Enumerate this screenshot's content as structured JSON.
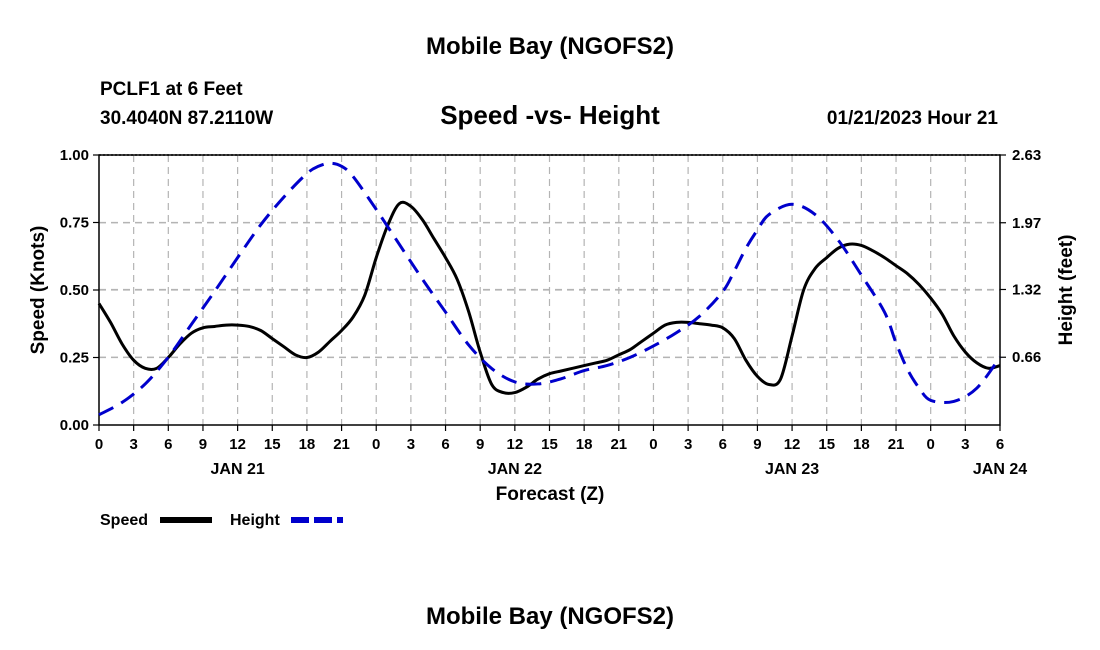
{
  "page_title": "Mobile Bay (NGOFS2)",
  "footer_title": "Mobile Bay (NGOFS2)",
  "chart_data": {
    "type": "line",
    "title": "Speed -vs- Height",
    "station": "PCLF1 at 6 Feet",
    "coords": "30.4040N  87.2110W",
    "datetime": "01/21/2023 Hour 21",
    "xlabel": "Forecast (Z)",
    "ylabel_left": "Speed (Knots)",
    "ylabel_right": "Height (feet)",
    "grid": true,
    "x_hours_range": [
      0,
      78
    ],
    "ylim_left": [
      0,
      1.0
    ],
    "ylim_right": [
      0.0,
      2.63
    ],
    "x_tick_labels": [
      "0",
      "3",
      "6",
      "9",
      "12",
      "15",
      "18",
      "21",
      "0",
      "3",
      "6",
      "9",
      "12",
      "15",
      "18",
      "21",
      "0",
      "3",
      "6",
      "9",
      "12",
      "15",
      "18",
      "21",
      "0",
      "3",
      "6"
    ],
    "x_date_labels": [
      {
        "hour": 12,
        "label": "JAN 21"
      },
      {
        "hour": 36,
        "label": "JAN 22"
      },
      {
        "hour": 60,
        "label": "JAN 23"
      },
      {
        "hour": 78,
        "label": "JAN 24"
      }
    ],
    "y_left_ticks": [
      "0.00",
      "0.25",
      "0.50",
      "0.75",
      "1.00"
    ],
    "y_right_ticks": [
      {
        "value": 0.66,
        "label": "0.66"
      },
      {
        "value": 1.32,
        "label": "1.32"
      },
      {
        "value": 1.97,
        "label": "1.97"
      },
      {
        "value": 2.63,
        "label": "2.63"
      }
    ],
    "series": [
      {
        "name": "Speed",
        "axis": "left",
        "color": "#000000",
        "style": "solid",
        "x": [
          0,
          1,
          2,
          3,
          4,
          5,
          6,
          7,
          8,
          9,
          10,
          11,
          12,
          13,
          14,
          15,
          16,
          17,
          18,
          19,
          20,
          21,
          22,
          23,
          24,
          25,
          26,
          27,
          28,
          29,
          30,
          31,
          32,
          33,
          34,
          35,
          36,
          37,
          38,
          39,
          40,
          41,
          42,
          43,
          44,
          45,
          46,
          47,
          48,
          49,
          50,
          51,
          52,
          53,
          54,
          55,
          56,
          57,
          58,
          59,
          60,
          61,
          62,
          63,
          64,
          65,
          66,
          67,
          68,
          69,
          70,
          71,
          72,
          73,
          74,
          75,
          76,
          77,
          78
        ],
        "values": [
          0.45,
          0.38,
          0.3,
          0.24,
          0.21,
          0.21,
          0.25,
          0.3,
          0.34,
          0.36,
          0.365,
          0.37,
          0.37,
          0.365,
          0.35,
          0.32,
          0.29,
          0.26,
          0.25,
          0.27,
          0.31,
          0.35,
          0.4,
          0.48,
          0.62,
          0.74,
          0.82,
          0.81,
          0.76,
          0.69,
          0.62,
          0.54,
          0.42,
          0.27,
          0.15,
          0.12,
          0.12,
          0.14,
          0.17,
          0.19,
          0.2,
          0.21,
          0.22,
          0.23,
          0.24,
          0.26,
          0.28,
          0.31,
          0.34,
          0.37,
          0.38,
          0.38,
          0.375,
          0.37,
          0.36,
          0.32,
          0.24,
          0.18,
          0.15,
          0.17,
          0.33,
          0.5,
          0.58,
          0.62,
          0.655,
          0.67,
          0.665,
          0.645,
          0.62,
          0.59,
          0.56,
          0.52,
          0.47,
          0.41,
          0.33,
          0.27,
          0.23,
          0.21,
          0.22
        ]
      },
      {
        "name": "Height",
        "axis": "right",
        "color": "#0000cc",
        "style": "dashed",
        "x": [
          0,
          2,
          4,
          6,
          8,
          10,
          12,
          14,
          16,
          18,
          19,
          20,
          21,
          22,
          24,
          26,
          28,
          30,
          32,
          34,
          36,
          38,
          40,
          42,
          44,
          46,
          48,
          50,
          52,
          54,
          55,
          56,
          57,
          58,
          60,
          62,
          64,
          66,
          68,
          69,
          70,
          71,
          72,
          74,
          76,
          78
        ],
        "values": [
          0.1,
          0.22,
          0.4,
          0.66,
          0.98,
          1.3,
          1.63,
          1.95,
          2.22,
          2.45,
          2.52,
          2.55,
          2.52,
          2.42,
          2.1,
          1.76,
          1.42,
          1.1,
          0.78,
          0.55,
          0.42,
          0.4,
          0.45,
          0.53,
          0.58,
          0.66,
          0.77,
          0.9,
          1.06,
          1.3,
          1.5,
          1.72,
          1.9,
          2.05,
          2.15,
          2.05,
          1.8,
          1.46,
          1.1,
          0.8,
          0.54,
          0.36,
          0.24,
          0.23,
          0.36,
          0.66
        ]
      }
    ]
  },
  "legend": [
    {
      "label": "Speed",
      "color": "#000000",
      "style": "solid"
    },
    {
      "label": "Height",
      "color": "#0000cc",
      "style": "dashed"
    }
  ]
}
